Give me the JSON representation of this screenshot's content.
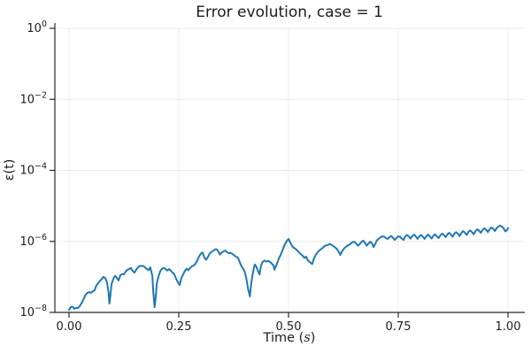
{
  "figure": {
    "background": "#ffffff"
  },
  "colors": {
    "line": "#1f77b4",
    "grid": "rgba(0,0,0,0.08)",
    "axis": "#26282d",
    "text": "#1c1c1c"
  },
  "chart_data": {
    "type": "line",
    "title": "Error evolution, case = 1",
    "xlabel": "Time (s)",
    "xlabel_parts": {
      "pre": "Time (",
      "italic": "s",
      "post": ")"
    },
    "ylabel": "ε(t)",
    "x_ticks": [
      0,
      0.25,
      0.5,
      0.75,
      1
    ],
    "x_tick_labels": [
      "0.00",
      "0.25",
      "0.50",
      "0.75",
      "1.00"
    ],
    "y_scale": "log10",
    "y_ticks_exp": [
      0,
      -2,
      -4,
      -6,
      -8
    ],
    "y_tick_label_parts": [
      {
        "base": "10",
        "exp": "0"
      },
      {
        "base": "10",
        "exp": "−2"
      },
      {
        "base": "10",
        "exp": "−4"
      },
      {
        "base": "10",
        "exp": "−6"
      },
      {
        "base": "10",
        "exp": "−8"
      }
    ],
    "xlim": [
      0,
      1
    ],
    "ylim": [
      1e-08,
      1
    ],
    "grid": true,
    "legend": "none",
    "series": [
      {
        "name": "ε(t)",
        "color": "#1f77b4",
        "line_width": 2,
        "points_format": "[t, log10(epsilon)]",
        "points": [
          [
            0.0,
            -7.93
          ],
          [
            0.004,
            -7.85
          ],
          [
            0.008,
            -7.84
          ],
          [
            0.012,
            -7.9
          ],
          [
            0.016,
            -7.87
          ],
          [
            0.02,
            -7.88
          ],
          [
            0.024,
            -7.83
          ],
          [
            0.03,
            -7.7
          ],
          [
            0.034,
            -7.6
          ],
          [
            0.038,
            -7.5
          ],
          [
            0.042,
            -7.45
          ],
          [
            0.046,
            -7.43
          ],
          [
            0.05,
            -7.45
          ],
          [
            0.054,
            -7.41
          ],
          [
            0.058,
            -7.38
          ],
          [
            0.062,
            -7.25
          ],
          [
            0.066,
            -7.18
          ],
          [
            0.07,
            -7.12
          ],
          [
            0.074,
            -7.07
          ],
          [
            0.078,
            -7.0
          ],
          [
            0.082,
            -7.03
          ],
          [
            0.086,
            -7.13
          ],
          [
            0.09,
            -7.43
          ],
          [
            0.092,
            -7.75
          ],
          [
            0.094,
            -7.55
          ],
          [
            0.097,
            -7.2
          ],
          [
            0.101,
            -7.05
          ],
          [
            0.105,
            -6.97
          ],
          [
            0.109,
            -7.03
          ],
          [
            0.113,
            -7.1
          ],
          [
            0.117,
            -6.95
          ],
          [
            0.121,
            -6.92
          ],
          [
            0.125,
            -6.93
          ],
          [
            0.129,
            -6.85
          ],
          [
            0.133,
            -6.8
          ],
          [
            0.137,
            -6.78
          ],
          [
            0.141,
            -6.75
          ],
          [
            0.145,
            -6.83
          ],
          [
            0.149,
            -6.88
          ],
          [
            0.153,
            -6.8
          ],
          [
            0.157,
            -6.73
          ],
          [
            0.161,
            -6.69
          ],
          [
            0.165,
            -6.7
          ],
          [
            0.169,
            -6.69
          ],
          [
            0.173,
            -6.73
          ],
          [
            0.177,
            -6.78
          ],
          [
            0.181,
            -6.81
          ],
          [
            0.185,
            -6.73
          ],
          [
            0.19,
            -6.98
          ],
          [
            0.192,
            -7.43
          ],
          [
            0.195,
            -7.85
          ],
          [
            0.197,
            -7.63
          ],
          [
            0.2,
            -7.18
          ],
          [
            0.204,
            -6.98
          ],
          [
            0.208,
            -6.83
          ],
          [
            0.212,
            -6.77
          ],
          [
            0.216,
            -6.75
          ],
          [
            0.22,
            -6.78
          ],
          [
            0.224,
            -6.82
          ],
          [
            0.228,
            -6.78
          ],
          [
            0.232,
            -6.83
          ],
          [
            0.236,
            -6.88
          ],
          [
            0.24,
            -6.93
          ],
          [
            0.244,
            -7.05
          ],
          [
            0.248,
            -7.15
          ],
          [
            0.252,
            -7.23
          ],
          [
            0.256,
            -7.03
          ],
          [
            0.26,
            -6.93
          ],
          [
            0.264,
            -6.83
          ],
          [
            0.268,
            -6.77
          ],
          [
            0.272,
            -6.81
          ],
          [
            0.276,
            -6.75
          ],
          [
            0.28,
            -6.7
          ],
          [
            0.284,
            -6.68
          ],
          [
            0.288,
            -6.63
          ],
          [
            0.292,
            -6.55
          ],
          [
            0.296,
            -6.43
          ],
          [
            0.3,
            -6.35
          ],
          [
            0.304,
            -6.31
          ],
          [
            0.308,
            -6.45
          ],
          [
            0.312,
            -6.52
          ],
          [
            0.316,
            -6.45
          ],
          [
            0.32,
            -6.35
          ],
          [
            0.324,
            -6.3
          ],
          [
            0.328,
            -6.27
          ],
          [
            0.332,
            -6.23
          ],
          [
            0.336,
            -6.22
          ],
          [
            0.34,
            -6.28
          ],
          [
            0.344,
            -6.37
          ],
          [
            0.348,
            -6.31
          ],
          [
            0.352,
            -6.28
          ],
          [
            0.356,
            -6.26
          ],
          [
            0.36,
            -6.31
          ],
          [
            0.364,
            -6.33
          ],
          [
            0.368,
            -6.32
          ],
          [
            0.372,
            -6.35
          ],
          [
            0.376,
            -6.39
          ],
          [
            0.38,
            -6.43
          ],
          [
            0.384,
            -6.45
          ],
          [
            0.388,
            -6.55
          ],
          [
            0.392,
            -6.68
          ],
          [
            0.396,
            -6.76
          ],
          [
            0.4,
            -6.85
          ],
          [
            0.404,
            -7.05
          ],
          [
            0.408,
            -7.35
          ],
          [
            0.412,
            -7.55
          ],
          [
            0.415,
            -7.2
          ],
          [
            0.419,
            -6.88
          ],
          [
            0.423,
            -6.65
          ],
          [
            0.427,
            -6.72
          ],
          [
            0.431,
            -6.85
          ],
          [
            0.434,
            -6.93
          ],
          [
            0.437,
            -6.7
          ],
          [
            0.441,
            -6.58
          ],
          [
            0.445,
            -6.54
          ],
          [
            0.45,
            -6.57
          ],
          [
            0.454,
            -6.55
          ],
          [
            0.458,
            -6.58
          ],
          [
            0.462,
            -6.63
          ],
          [
            0.466,
            -6.68
          ],
          [
            0.468,
            -6.8
          ],
          [
            0.472,
            -6.68
          ],
          [
            0.476,
            -6.55
          ],
          [
            0.478,
            -6.48
          ],
          [
            0.482,
            -6.38
          ],
          [
            0.486,
            -6.26
          ],
          [
            0.49,
            -6.13
          ],
          [
            0.494,
            -6.03
          ],
          [
            0.498,
            -5.96
          ],
          [
            0.5,
            -5.93
          ],
          [
            0.504,
            -6.03
          ],
          [
            0.508,
            -6.13
          ],
          [
            0.512,
            -6.18
          ],
          [
            0.516,
            -6.21
          ],
          [
            0.52,
            -6.26
          ],
          [
            0.524,
            -6.31
          ],
          [
            0.528,
            -6.36
          ],
          [
            0.532,
            -6.4
          ],
          [
            0.536,
            -6.47
          ],
          [
            0.54,
            -6.43
          ],
          [
            0.544,
            -6.53
          ],
          [
            0.548,
            -6.58
          ],
          [
            0.554,
            -6.64
          ],
          [
            0.558,
            -6.48
          ],
          [
            0.562,
            -6.38
          ],
          [
            0.566,
            -6.31
          ],
          [
            0.57,
            -6.26
          ],
          [
            0.574,
            -6.22
          ],
          [
            0.578,
            -6.18
          ],
          [
            0.582,
            -6.13
          ],
          [
            0.586,
            -6.11
          ],
          [
            0.59,
            -6.1
          ],
          [
            0.594,
            -6.07
          ],
          [
            0.598,
            -6.1
          ],
          [
            0.602,
            -6.13
          ],
          [
            0.606,
            -6.17
          ],
          [
            0.61,
            -6.21
          ],
          [
            0.614,
            -6.28
          ],
          [
            0.618,
            -6.38
          ],
          [
            0.622,
            -6.28
          ],
          [
            0.626,
            -6.21
          ],
          [
            0.63,
            -6.16
          ],
          [
            0.634,
            -6.12
          ],
          [
            0.638,
            -6.1
          ],
          [
            0.642,
            -6.06
          ],
          [
            0.646,
            -6.02
          ],
          [
            0.65,
            -6.01
          ],
          [
            0.654,
            -6.06
          ],
          [
            0.658,
            -6.12
          ],
          [
            0.662,
            -6.08
          ],
          [
            0.666,
            -6.02
          ],
          [
            0.67,
            -5.98
          ],
          [
            0.674,
            -6.03
          ],
          [
            0.678,
            -6.12
          ],
          [
            0.682,
            -6.06
          ],
          [
            0.686,
            -6.01
          ],
          [
            0.69,
            -6.05
          ],
          [
            0.694,
            -6.16
          ],
          [
            0.698,
            -6.06
          ],
          [
            0.702,
            -5.96
          ],
          [
            0.706,
            -5.92
          ],
          [
            0.71,
            -5.88
          ],
          [
            0.714,
            -5.86
          ],
          [
            0.718,
            -5.87
          ],
          [
            0.722,
            -5.91
          ],
          [
            0.726,
            -5.93
          ],
          [
            0.73,
            -5.88
          ],
          [
            0.734,
            -5.85
          ],
          [
            0.738,
            -5.9
          ],
          [
            0.742,
            -5.96
          ],
          [
            0.746,
            -5.91
          ],
          [
            0.75,
            -5.86
          ],
          [
            0.754,
            -5.87
          ],
          [
            0.758,
            -5.92
          ],
          [
            0.762,
            -5.96
          ],
          [
            0.766,
            -5.86
          ],
          [
            0.77,
            -5.82
          ],
          [
            0.774,
            -5.86
          ],
          [
            0.778,
            -5.92
          ],
          [
            0.782,
            -5.85
          ],
          [
            0.786,
            -5.81
          ],
          [
            0.79,
            -5.86
          ],
          [
            0.794,
            -5.93
          ],
          [
            0.798,
            -5.86
          ],
          [
            0.802,
            -5.82
          ],
          [
            0.806,
            -5.87
          ],
          [
            0.81,
            -5.93
          ],
          [
            0.814,
            -5.86
          ],
          [
            0.818,
            -5.81
          ],
          [
            0.822,
            -5.86
          ],
          [
            0.826,
            -5.92
          ],
          [
            0.83,
            -5.84
          ],
          [
            0.834,
            -5.8
          ],
          [
            0.838,
            -5.86
          ],
          [
            0.842,
            -5.91
          ],
          [
            0.846,
            -5.83
          ],
          [
            0.85,
            -5.78
          ],
          [
            0.854,
            -5.82
          ],
          [
            0.858,
            -5.88
          ],
          [
            0.862,
            -5.8
          ],
          [
            0.866,
            -5.76
          ],
          [
            0.87,
            -5.81
          ],
          [
            0.874,
            -5.87
          ],
          [
            0.878,
            -5.78
          ],
          [
            0.882,
            -5.74
          ],
          [
            0.886,
            -5.79
          ],
          [
            0.89,
            -5.85
          ],
          [
            0.894,
            -5.76
          ],
          [
            0.898,
            -5.71
          ],
          [
            0.902,
            -5.76
          ],
          [
            0.906,
            -5.82
          ],
          [
            0.91,
            -5.73
          ],
          [
            0.914,
            -5.69
          ],
          [
            0.918,
            -5.74
          ],
          [
            0.922,
            -5.8
          ],
          [
            0.926,
            -5.71
          ],
          [
            0.93,
            -5.66
          ],
          [
            0.934,
            -5.7
          ],
          [
            0.938,
            -5.76
          ],
          [
            0.942,
            -5.68
          ],
          [
            0.946,
            -5.63
          ],
          [
            0.95,
            -5.67
          ],
          [
            0.954,
            -5.74
          ],
          [
            0.958,
            -5.66
          ],
          [
            0.962,
            -5.61
          ],
          [
            0.966,
            -5.64
          ],
          [
            0.97,
            -5.71
          ],
          [
            0.974,
            -5.63
          ],
          [
            0.978,
            -5.58
          ],
          [
            0.982,
            -5.56
          ],
          [
            0.986,
            -5.58
          ],
          [
            0.99,
            -5.63
          ],
          [
            0.994,
            -5.72
          ],
          [
            0.998,
            -5.68
          ],
          [
            1.0,
            -5.62
          ]
        ]
      }
    ]
  }
}
